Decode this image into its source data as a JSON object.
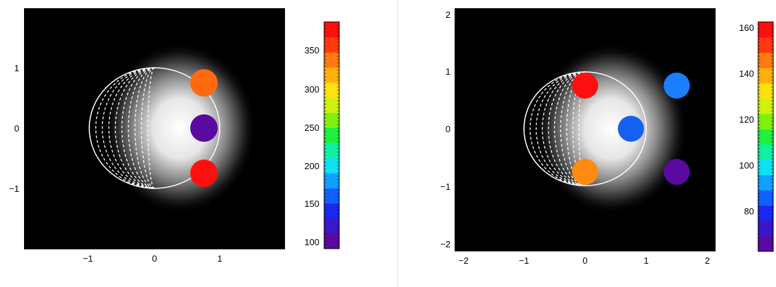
{
  "chart_data": [
    {
      "type": "heatmap",
      "title": "",
      "xlabel": "",
      "ylabel": "",
      "xlim": [
        -2,
        2
      ],
      "ylim": [
        -2,
        2
      ],
      "xticks": [
        "−1",
        "0",
        "1"
      ],
      "yticks": [
        "1",
        "0",
        "−1"
      ],
      "colorbar": {
        "range": [
          90,
          388
        ],
        "ticks": [
          "350",
          "300",
          "250",
          "200",
          "150",
          "100"
        ]
      },
      "series": [
        {
          "x": 0.75,
          "y": 0.75,
          "value": 360,
          "color": "#ff6a10"
        },
        {
          "x": 0.75,
          "y": 0.0,
          "value": 95,
          "color": "#5a0aa0"
        },
        {
          "x": 0.75,
          "y": -0.75,
          "value": 388,
          "color": "#ff1010"
        }
      ],
      "grid": false
    },
    {
      "type": "heatmap",
      "title": "",
      "xlabel": "",
      "ylabel": "",
      "xlim": [
        -2.2,
        2.2
      ],
      "ylim": [
        -2.2,
        2.2
      ],
      "xticks": [
        "−2",
        "−1",
        "0",
        "1",
        "2"
      ],
      "yticks": [
        "2",
        "1",
        "0",
        "−1",
        "−2"
      ],
      "colorbar": {
        "range": [
          62,
          162
        ],
        "ticks": [
          "160",
          "140",
          "120",
          "100",
          "80"
        ]
      },
      "series": [
        {
          "x": 0.0,
          "y": 0.75,
          "value": 160,
          "color": "#ff1010"
        },
        {
          "x": 1.5,
          "y": 0.75,
          "value": 87,
          "color": "#1a7fff"
        },
        {
          "x": 0.75,
          "y": 0.0,
          "value": 84,
          "color": "#1560f0"
        },
        {
          "x": 0.0,
          "y": -0.75,
          "value": 150,
          "color": "#ff8a10"
        },
        {
          "x": 1.5,
          "y": -0.75,
          "value": 65,
          "color": "#5a0aa0"
        }
      ],
      "grid": false
    }
  ]
}
